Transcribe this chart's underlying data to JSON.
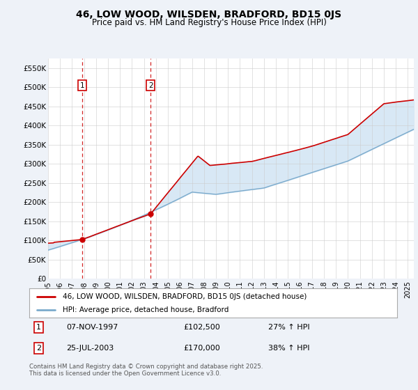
{
  "title": "46, LOW WOOD, WILSDEN, BRADFORD, BD15 0JS",
  "subtitle": "Price paid vs. HM Land Registry's House Price Index (HPI)",
  "ylim": [
    0,
    575000
  ],
  "xlim_start": 1995.0,
  "xlim_end": 2025.5,
  "sale1_date": 1997.85,
  "sale1_price": 102500,
  "sale2_date": 2003.56,
  "sale2_price": 170000,
  "legend_property": "46, LOW WOOD, WILSDEN, BRADFORD, BD15 0JS (detached house)",
  "legend_hpi": "HPI: Average price, detached house, Bradford",
  "footer": "Contains HM Land Registry data © Crown copyright and database right 2025.\nThis data is licensed under the Open Government Licence v3.0.",
  "bg_color": "#eef2f8",
  "plot_bg_color": "#ffffff",
  "red_color": "#cc0000",
  "blue_color": "#7aaacc",
  "fill_color": "#d8e8f5",
  "grid_color": "#cccccc",
  "title_fontsize": 10,
  "subtitle_fontsize": 8.5
}
